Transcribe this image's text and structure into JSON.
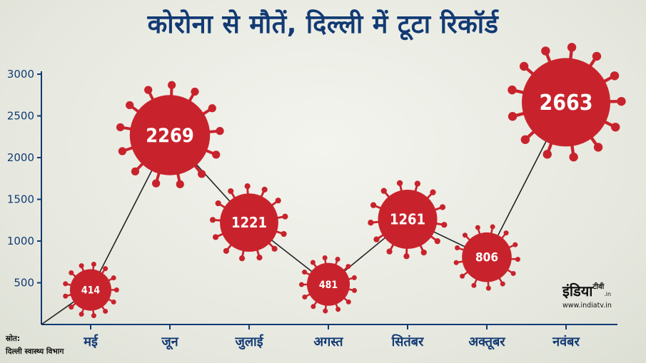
{
  "chart_data": {
    "type": "line",
    "title": "कोरोना से मौतें, दिल्ली में टूटा रिकॉर्ड",
    "categories": [
      "मई",
      "जून",
      "जुलाई",
      "अगस्त",
      "सितंबर",
      "अक्तूबर",
      "नवंबर"
    ],
    "values": [
      414,
      2269,
      1221,
      481,
      1261,
      806,
      2663
    ],
    "data_labels": [
      "414",
      "2269",
      "1221",
      "481",
      "1261",
      "806",
      "2663"
    ],
    "yticks": [
      "500",
      "1000",
      "1500",
      "2000",
      "2500",
      "3000"
    ],
    "ylim": [
      0,
      3000
    ],
    "grid": false,
    "marker": "virus",
    "colors": {
      "marker": "#c8232c",
      "axis": "#123a73",
      "line": "#222222"
    }
  },
  "source": {
    "label": "स्रोत:",
    "text": "दिल्ली स्वास्थ्य विभाग"
  },
  "logo": {
    "brand": "इंडिया",
    "suffix": "टीवी",
    "domain": ".in",
    "url": "www.indiatv.in"
  }
}
